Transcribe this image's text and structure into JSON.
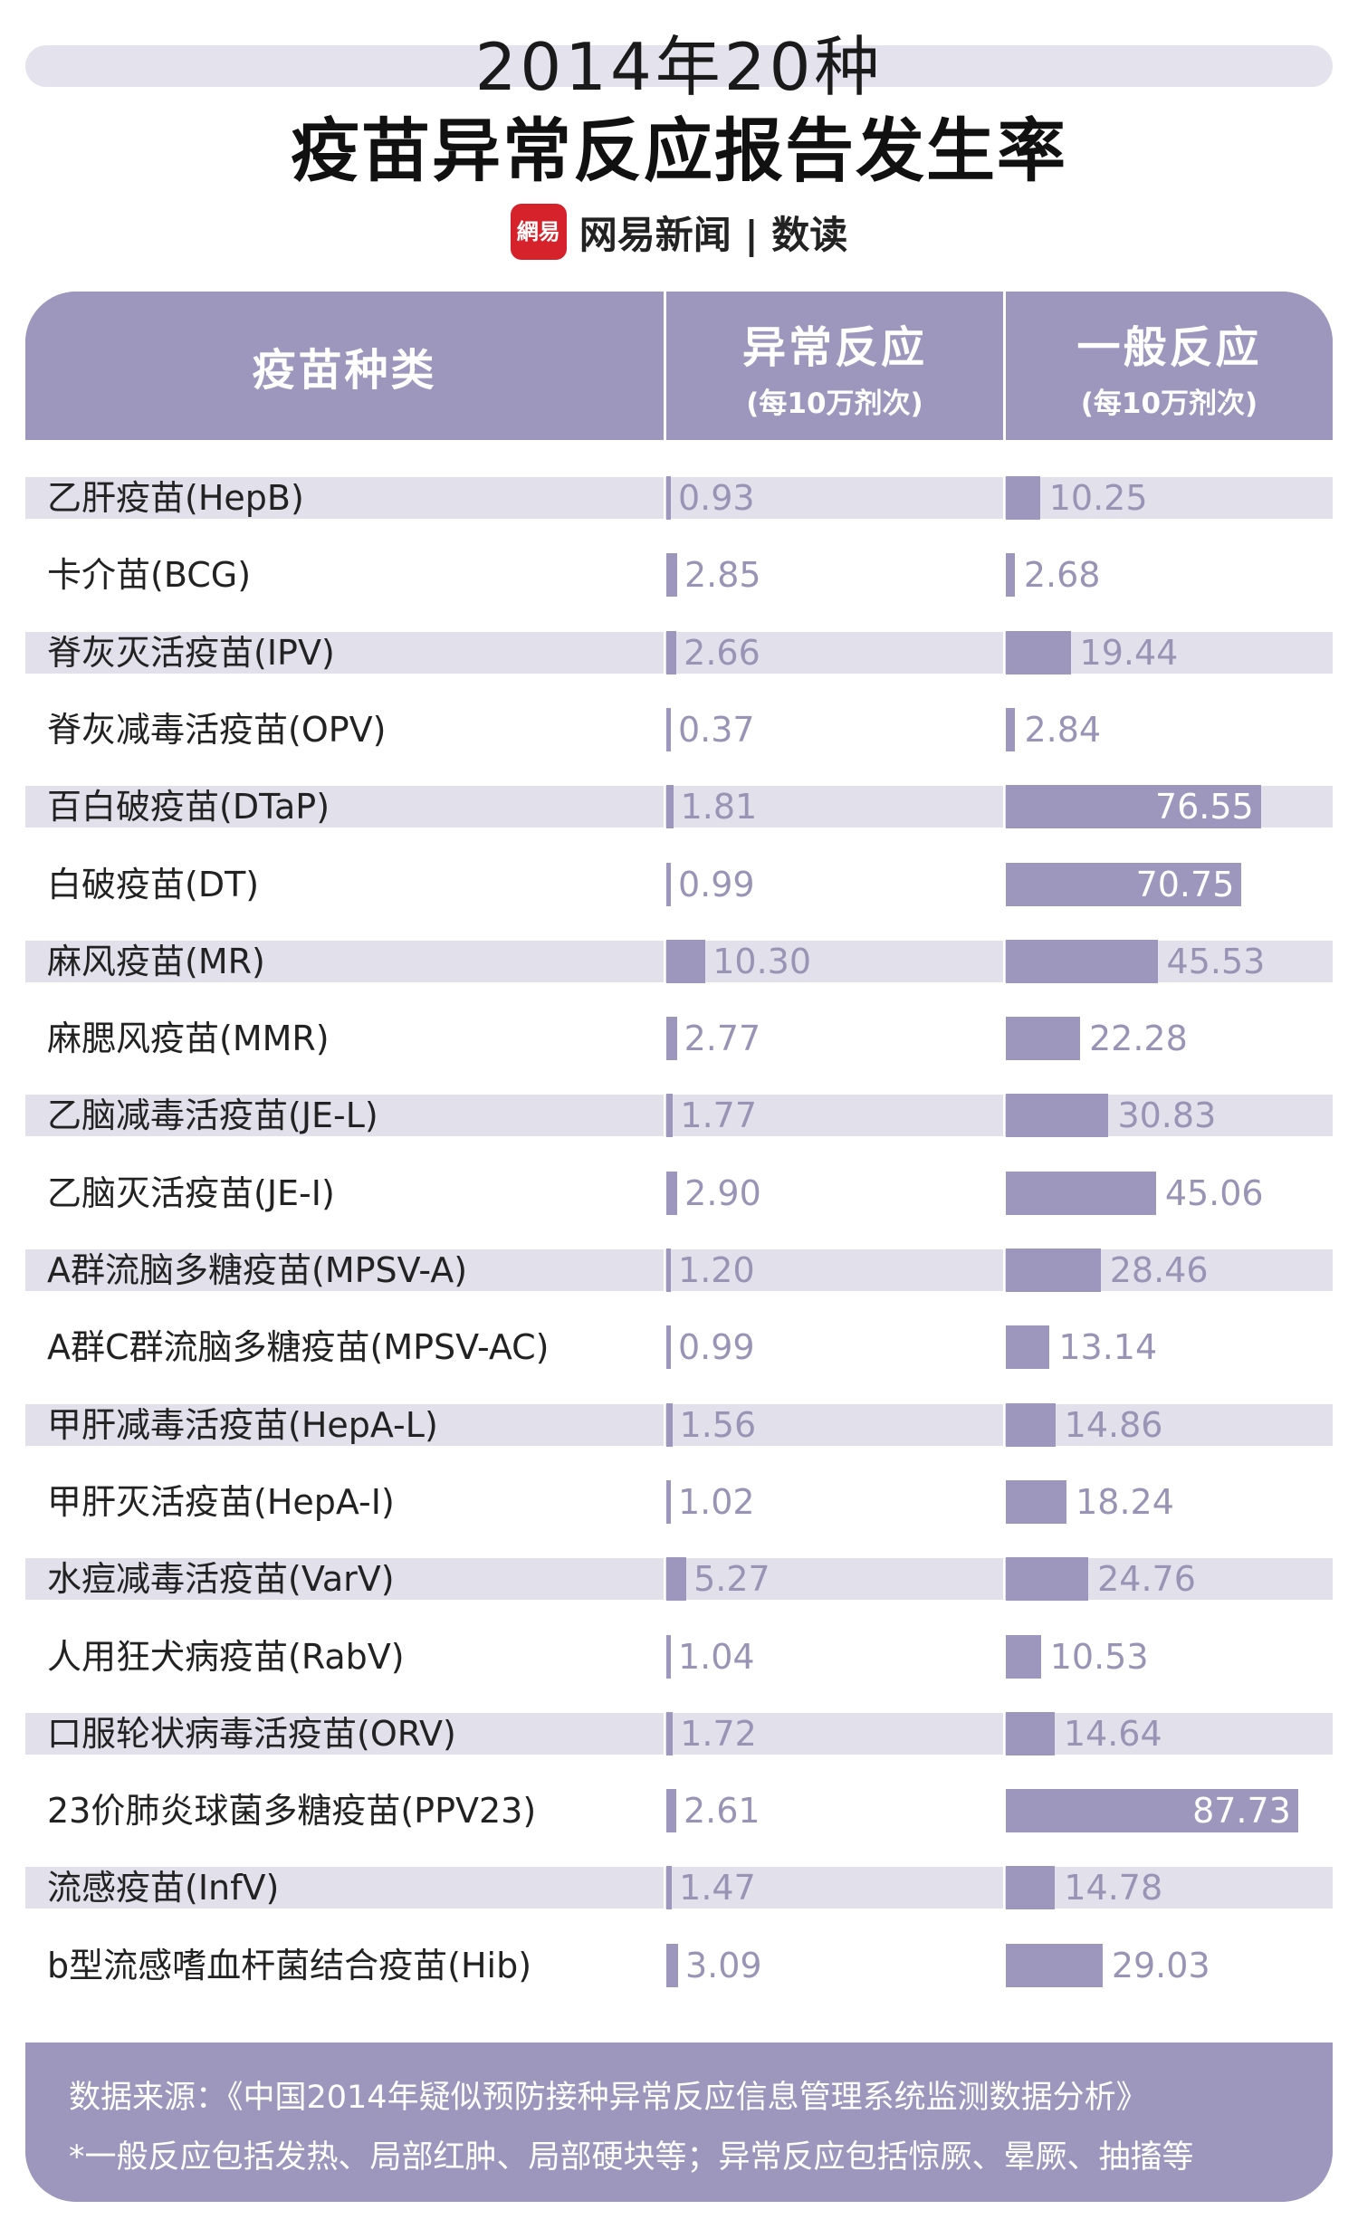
{
  "title": {
    "line1": "2014年20种",
    "line2": "疫苗异常反应报告发生率"
  },
  "brand": {
    "logo_text": "網易",
    "name": "网易新闻 | 数读",
    "logo_color": "#d5222b"
  },
  "colors": {
    "accent": "#9d97bd",
    "stripe": "#e2e0ea",
    "value_text": "#9994b5"
  },
  "header": {
    "col1": "疫苗种类",
    "col2_main": "异常反应",
    "col2_sub": "(每10万剂次)",
    "col3_main": "一般反应",
    "col3_sub": "(每10万剂次)"
  },
  "chart_data": {
    "type": "bar",
    "orientation": "horizontal",
    "categories": [
      "乙肝疫苗(HepB)",
      "卡介苗(BCG)",
      "脊灰灭活疫苗(IPV)",
      "脊灰减毒活疫苗(OPV)",
      "百白破疫苗(DTaP)",
      "白破疫苗(DT)",
      "麻风疫苗(MR)",
      "麻腮风疫苗(MMR)",
      "乙脑减毒活疫苗(JE-L)",
      "乙脑灭活疫苗(JE-I)",
      "A群流脑多糖疫苗(MPSV-A)",
      "A群C群流脑多糖疫苗(MPSV-AC)",
      "甲肝减毒活疫苗(HepA-L)",
      "甲肝灭活疫苗(HepA-I)",
      "水痘减毒活疫苗(VarV)",
      "人用狂犬病疫苗(RabV)",
      "口服轮状病毒活疫苗(ORV)",
      "23价肺炎球菌多糖疫苗(PPV23)",
      "流感疫苗(InfV)",
      "b型流感嗜血杆菌结合疫苗(Hib)"
    ],
    "series": [
      {
        "name": "异常反应",
        "values": [
          0.93,
          2.85,
          2.66,
          0.37,
          1.81,
          0.99,
          10.3,
          2.77,
          1.77,
          2.9,
          1.2,
          0.99,
          1.56,
          1.02,
          5.27,
          1.04,
          1.72,
          2.61,
          1.47,
          3.09
        ],
        "labels": [
          "0.93",
          "2.85",
          "2.66",
          "0.37",
          "1.81",
          "0.99",
          "10.30",
          "2.77",
          "1.77",
          "2.90",
          "1.20",
          "0.99",
          "1.56",
          "1.02",
          "5.27",
          "1.04",
          "1.72",
          "2.61",
          "1.47",
          "3.09"
        ]
      },
      {
        "name": "一般反应",
        "values": [
          10.25,
          2.68,
          19.44,
          2.84,
          76.55,
          70.75,
          45.53,
          22.28,
          30.83,
          45.06,
          28.46,
          13.14,
          14.86,
          18.24,
          24.76,
          10.53,
          14.64,
          87.73,
          14.78,
          29.03
        ],
        "labels": [
          "10.25",
          "2.68",
          "19.44",
          "2.84",
          "76.55",
          "70.75",
          "45.53",
          "22.28",
          "30.83",
          "45.06",
          "28.46",
          "13.14",
          "14.86",
          "18.24",
          "24.76",
          "10.53",
          "14.64",
          "87.73",
          "14.78",
          "29.03"
        ]
      }
    ]
  },
  "footer": {
    "source": "数据来源：《中国2014年疑似预防接种异常反应信息管理系统监测数据分析》",
    "note": "*一般反应包括发热、局部红肿、局部硬块等；异常反应包括惊厥、晕厥、抽搐等"
  }
}
